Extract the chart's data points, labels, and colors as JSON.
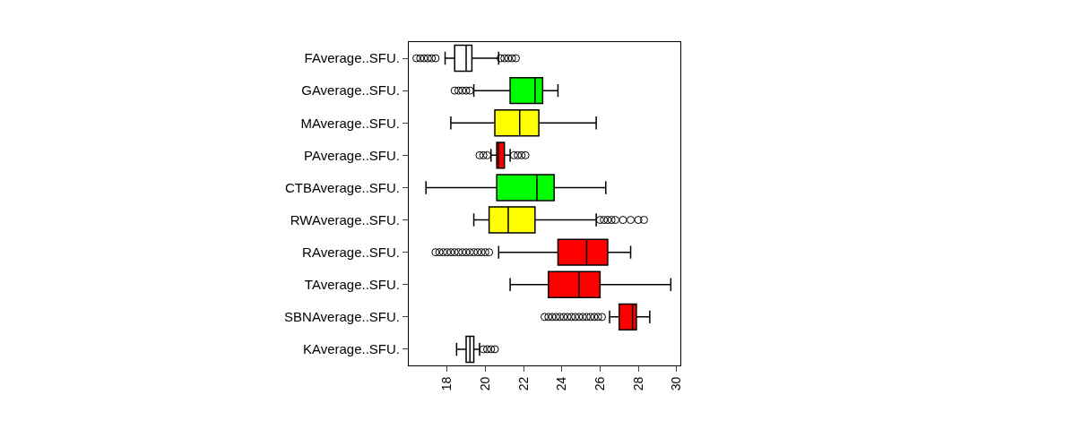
{
  "chart_data": {
    "type": "box",
    "orientation": "horizontal",
    "categories": [
      "FAverage..SFU.",
      "GAverage..SFU.",
      "MAverage..SFU.",
      "PAverage..SFU.",
      "CTBAverage..SFU.",
      "RWAverage..SFU.",
      "RAverage..SFU.",
      "TAverage..SFU.",
      "SBNAverage..SFU.",
      "KAverage..SFU."
    ],
    "colors": [
      "#ffffff",
      "#00ff00",
      "#ffff00",
      "#ff0000",
      "#00ff00",
      "#ffff00",
      "#ff0000",
      "#ff0000",
      "#ff0000",
      "#ffffff"
    ],
    "boxes": [
      {
        "low": 17.9,
        "q1": 18.4,
        "median": 19.0,
        "q3": 19.3,
        "high": 20.7,
        "outliers": [
          16.4,
          16.6,
          16.8,
          17.0,
          17.2,
          17.4,
          20.8,
          21.0,
          21.2,
          21.4,
          21.6
        ]
      },
      {
        "low": 19.4,
        "q1": 21.3,
        "median": 22.6,
        "q3": 23.0,
        "high": 23.8,
        "outliers": [
          18.4,
          18.6,
          18.8,
          19.0,
          19.2
        ]
      },
      {
        "low": 18.2,
        "q1": 20.5,
        "median": 21.8,
        "q3": 22.8,
        "high": 25.8
      },
      {
        "low": 20.3,
        "q1": 20.6,
        "median": 20.7,
        "q3": 21.0,
        "high": 21.3,
        "outliers": [
          19.7,
          19.9,
          20.1,
          21.5,
          21.7,
          21.9,
          22.1
        ]
      },
      {
        "low": 16.9,
        "q1": 20.6,
        "median": 22.7,
        "q3": 23.6,
        "high": 26.3
      },
      {
        "low": 19.4,
        "q1": 20.2,
        "median": 21.2,
        "q3": 22.6,
        "high": 25.8,
        "outliers": [
          26.0,
          26.2,
          26.4,
          26.6,
          26.8,
          27.2,
          27.6,
          28.0,
          28.3
        ]
      },
      {
        "low": 20.7,
        "q1": 23.8,
        "median": 25.3,
        "q3": 26.4,
        "high": 27.6,
        "outliers": [
          17.4,
          17.6,
          17.8,
          18.0,
          18.2,
          18.4,
          18.6,
          18.8,
          19.0,
          19.2,
          19.4,
          19.6,
          19.8,
          20.0,
          20.2
        ]
      },
      {
        "low": 21.3,
        "q1": 23.3,
        "median": 24.9,
        "q3": 26.0,
        "high": 29.7
      },
      {
        "low": 26.5,
        "q1": 27.0,
        "median": 27.7,
        "q3": 27.9,
        "high": 28.6,
        "outliers": [
          23.1,
          23.3,
          23.5,
          23.7,
          23.9,
          24.1,
          24.3,
          24.5,
          24.7,
          24.9,
          25.1,
          25.3,
          25.5,
          25.7,
          25.9,
          26.1
        ]
      },
      {
        "low": 18.5,
        "q1": 19.0,
        "median": 19.2,
        "q3": 19.4,
        "high": 19.7,
        "outliers": [
          19.9,
          20.1,
          20.3,
          20.5
        ]
      }
    ],
    "xlim": [
      16.0,
      30.2
    ],
    "xticks": [
      18,
      20,
      22,
      24,
      26,
      28,
      30
    ]
  }
}
